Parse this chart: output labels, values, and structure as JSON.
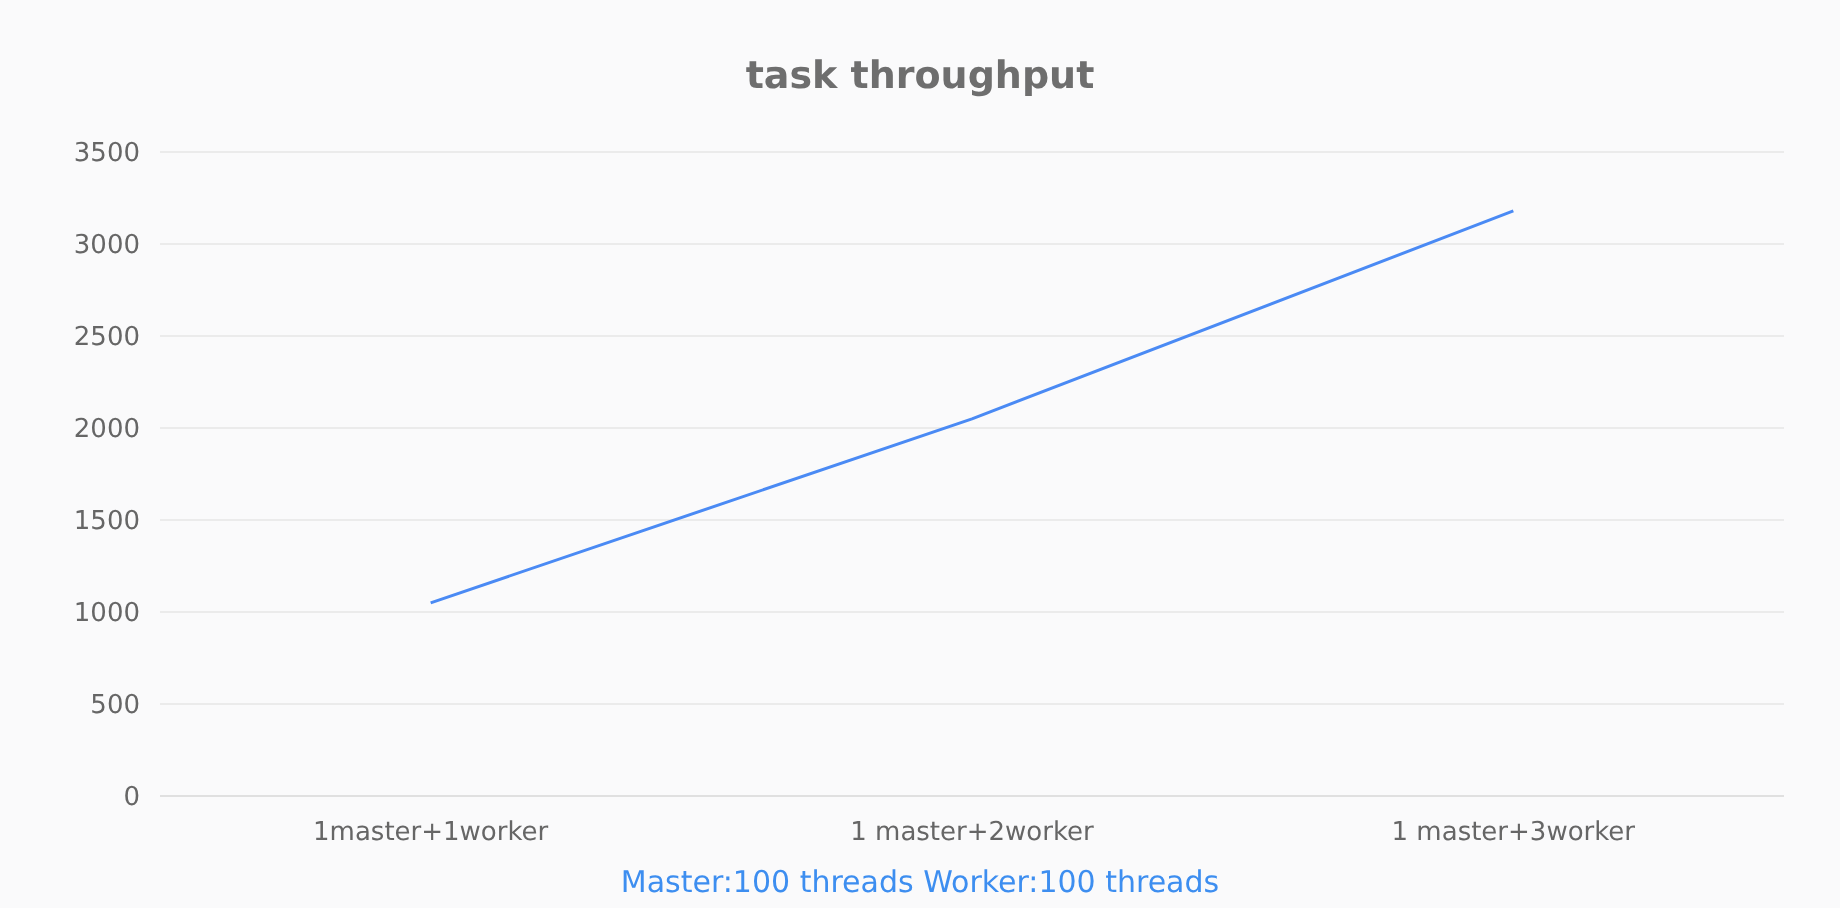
{
  "chart_data": {
    "type": "line",
    "title": "task throughput",
    "xlabel": "Master:100 threads  Worker:100 threads",
    "categories": [
      "1master+1worker",
      "1 master+2worker",
      "1 master+3worker"
    ],
    "series": [
      {
        "color": "#4a8af4",
        "values": [
          1050,
          2050,
          3180
        ]
      }
    ],
    "ylim": [
      0,
      3500
    ],
    "yticks": [
      0,
      500,
      1000,
      1500,
      2000,
      2500,
      3000,
      3500
    ],
    "grid": "y",
    "marker": "none",
    "line_style": "solid"
  }
}
